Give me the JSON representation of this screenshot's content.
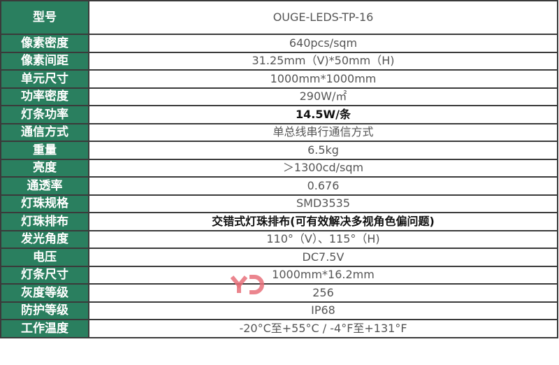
{
  "title_row": {
    "label": "型号",
    "value": "OUGE-LEDS-TP-16"
  },
  "rows": [
    {
      "label": "像素密度",
      "value": "640pcs/sqm"
    },
    {
      "label": "像素间距",
      "value": "31.25mm（V)*50mm（H)"
    },
    {
      "label": "单元尺寸",
      "value": "1000mm*1000mm"
    },
    {
      "label": "功率密度",
      "value": "290W/㎡"
    },
    {
      "label": "灯条功率",
      "value": "14.5W/条"
    },
    {
      "label": "通信方式",
      "value": "单总线串行通信方式"
    },
    {
      "label": "重量",
      "value": "6.5kg"
    },
    {
      "label": "亮度",
      "value": "＞1300cd/sqm"
    },
    {
      "label": "通透率",
      "value": "0.676"
    },
    {
      "label": "灯珠规格",
      "value": "SMD3535"
    },
    {
      "label": "灯珠排布",
      "value": "交错式灯珠排布(可有效解决多视角色偏问题)"
    },
    {
      "label": "发光角度",
      "value": "110°（V）、115°（H)"
    },
    {
      "label": "电压",
      "value": "DC7.5V"
    },
    {
      "label": "灯条尺寸",
      "value": "1000mm*16.2mm"
    },
    {
      "label": "灰度等级",
      "value": "256"
    },
    {
      "label": "防护等级",
      "value": "IP68"
    },
    {
      "label": "工作温度",
      "value": "-20°C至+55°C / -4°F至+131°F"
    }
  ],
  "watermark": {
    "text": "YD",
    "color": "#e8707a"
  },
  "colors": {
    "label_bg": "#2a7f5f",
    "border": "#3a3a3a"
  }
}
